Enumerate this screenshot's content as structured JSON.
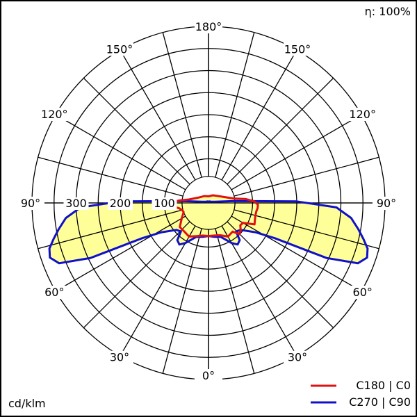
{
  "chart_data": {
    "type": "polar",
    "efficiency_label": "η: 100%",
    "unit_label": "cd/klm",
    "radial_ticks": [
      100,
      200,
      300
    ],
    "radial_max": 400,
    "angle_labels": [
      {
        "label": "180°",
        "angle": 180,
        "side": "top"
      },
      {
        "label": "150°",
        "angle": 150,
        "side": "left"
      },
      {
        "label": "150°",
        "angle": 150,
        "side": "right"
      },
      {
        "label": "120°",
        "angle": 120,
        "side": "left"
      },
      {
        "label": "120°",
        "angle": 120,
        "side": "right"
      },
      {
        "label": "90°",
        "angle": 90,
        "side": "left"
      },
      {
        "label": "90°",
        "angle": 90,
        "side": "right"
      },
      {
        "label": "60°",
        "angle": 60,
        "side": "left"
      },
      {
        "label": "60°",
        "angle": 60,
        "side": "right"
      },
      {
        "label": "30°",
        "angle": 30,
        "side": "left"
      },
      {
        "label": "30°",
        "angle": 30,
        "side": "right"
      },
      {
        "label": "0°",
        "angle": 0,
        "side": "bottom"
      }
    ],
    "series": [
      {
        "name": "C180 | C0",
        "color": "#e01010",
        "points": [
          [
            -180,
            15
          ],
          [
            -150,
            18
          ],
          [
            -120,
            25
          ],
          [
            -100,
            45
          ],
          [
            -95,
            65
          ],
          [
            -92,
            82
          ],
          [
            -88,
            88
          ],
          [
            -84,
            82
          ],
          [
            -80,
            68
          ],
          [
            -75,
            62
          ],
          [
            -70,
            60
          ],
          [
            -60,
            70
          ],
          [
            -50,
            85
          ],
          [
            -40,
            85
          ],
          [
            -30,
            88
          ],
          [
            -20,
            80
          ],
          [
            -10,
            75
          ],
          [
            0,
            75
          ],
          [
            10,
            75
          ],
          [
            20,
            78
          ],
          [
            30,
            88
          ],
          [
            40,
            85
          ],
          [
            45,
            100
          ],
          [
            50,
            95
          ],
          [
            55,
            88
          ],
          [
            60,
            90
          ],
          [
            65,
            115
          ],
          [
            70,
            112
          ],
          [
            75,
            110
          ],
          [
            80,
            110
          ],
          [
            84,
            112
          ],
          [
            88,
            112
          ],
          [
            92,
            104
          ],
          [
            96,
            85
          ],
          [
            100,
            58
          ],
          [
            120,
            30
          ],
          [
            150,
            20
          ],
          [
            180,
            15
          ]
        ]
      },
      {
        "name": "C270 | C90",
        "color": "#1010c8",
        "points": [
          [
            -180,
            3
          ],
          [
            -150,
            4
          ],
          [
            -120,
            6
          ],
          [
            -100,
            15
          ],
          [
            -94,
            60
          ],
          [
            -91,
            200
          ],
          [
            -88,
            290
          ],
          [
            -84,
            325
          ],
          [
            -80,
            345
          ],
          [
            -77,
            360
          ],
          [
            -74,
            375
          ],
          [
            -71,
            380
          ],
          [
            -68,
            365
          ],
          [
            -65,
            295
          ],
          [
            -62,
            170
          ],
          [
            -58,
            125
          ],
          [
            -50,
            95
          ],
          [
            -44,
            90
          ],
          [
            -40,
            110
          ],
          [
            -35,
            115
          ],
          [
            -30,
            105
          ],
          [
            -20,
            82
          ],
          [
            -10,
            78
          ],
          [
            0,
            75
          ],
          [
            10,
            78
          ],
          [
            20,
            82
          ],
          [
            30,
            105
          ],
          [
            35,
            115
          ],
          [
            40,
            110
          ],
          [
            44,
            90
          ],
          [
            50,
            95
          ],
          [
            58,
            125
          ],
          [
            62,
            170
          ],
          [
            65,
            295
          ],
          [
            68,
            365
          ],
          [
            71,
            380
          ],
          [
            74,
            375
          ],
          [
            77,
            360
          ],
          [
            80,
            345
          ],
          [
            84,
            325
          ],
          [
            88,
            290
          ],
          [
            91,
            200
          ],
          [
            94,
            60
          ],
          [
            100,
            15
          ],
          [
            120,
            6
          ],
          [
            150,
            4
          ],
          [
            180,
            3
          ]
        ]
      }
    ]
  }
}
